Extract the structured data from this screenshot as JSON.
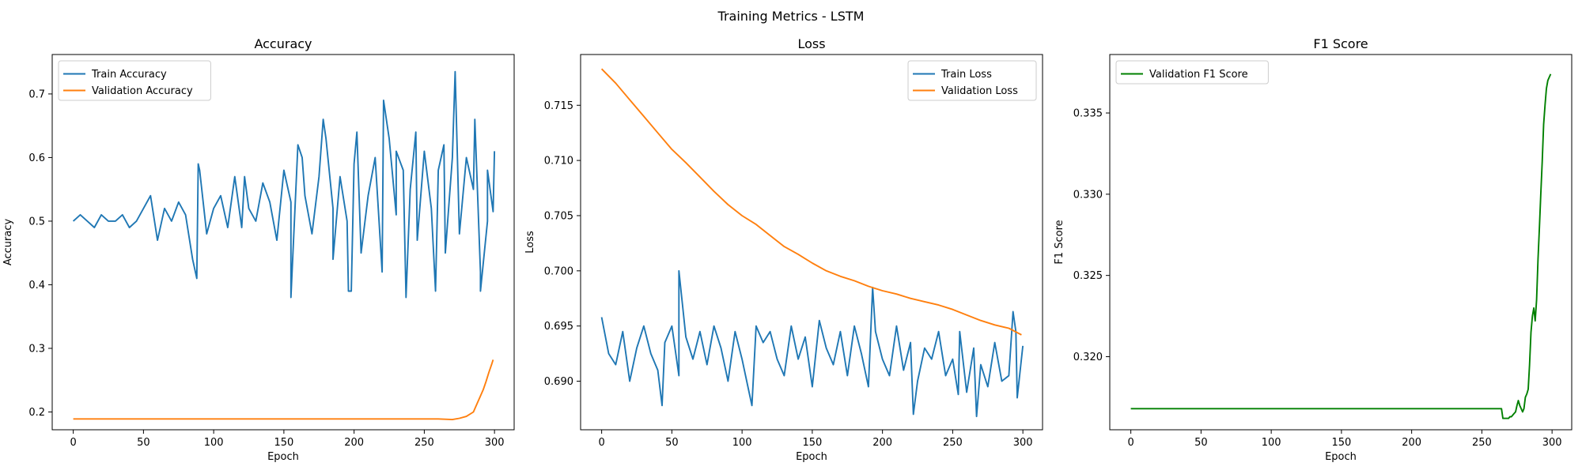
{
  "figure": {
    "suptitle": "Training Metrics - LSTM"
  },
  "colors": {
    "train": "#1f77b4",
    "validation": "#ff7f0e",
    "f1": "#008000",
    "axes": "#000000"
  },
  "chart_data": [
    {
      "type": "line",
      "title": "Accuracy",
      "xlabel": "Epoch",
      "ylabel": "Accuracy",
      "xlim": [
        -15,
        314
      ],
      "ylim": [
        0.172,
        0.762
      ],
      "xticks": [
        0,
        50,
        100,
        150,
        200,
        250,
        300
      ],
      "yticks": [
        0.2,
        0.3,
        0.4,
        0.5,
        0.6,
        0.7
      ],
      "yformat": 1,
      "legend_position": "upper-left",
      "series": [
        {
          "name": "Train Accuracy",
          "color": "#1f77b4",
          "x_start": 0,
          "x_step": 5,
          "values": [
            0.5,
            0.51,
            0.5,
            0.49,
            0.51,
            0.5,
            0.5,
            0.51,
            0.49,
            0.5,
            0.52,
            0.54,
            0.47,
            0.52,
            0.5,
            0.53,
            0.51,
            0.44,
            0.58,
            0.48,
            0.52,
            0.54,
            0.49,
            0.57,
            0.49,
            0.52,
            0.5,
            0.56,
            0.53,
            0.47,
            0.58,
            0.53,
            0.62,
            0.54,
            0.48,
            0.57,
            0.63,
            0.52,
            0.57,
            0.5,
            0.59,
            0.45,
            0.54,
            0.6,
            0.42,
            0.63,
            0.51,
            0.58,
            0.55,
            0.47,
            0.61,
            0.52,
            0.58,
            0.45,
            0.6,
            0.48,
            0.6,
            0.55,
            0.42,
            0.5,
            0.61
          ],
          "overlay": [
            [
              88,
              0.41
            ],
            [
              89,
              0.59
            ],
            [
              122,
              0.57
            ],
            [
              155,
              0.38
            ],
            [
              163,
              0.6
            ],
            [
              178,
              0.66
            ],
            [
              185,
              0.44
            ],
            [
              196,
              0.39
            ],
            [
              198,
              0.39
            ],
            [
              202,
              0.64
            ],
            [
              221,
              0.69
            ],
            [
              230,
              0.61
            ],
            [
              237,
              0.38
            ],
            [
              244,
              0.64
            ],
            [
              258,
              0.39
            ],
            [
              264,
              0.62
            ],
            [
              272,
              0.735
            ],
            [
              286,
              0.66
            ],
            [
              290,
              0.39
            ],
            [
              295,
              0.58
            ],
            [
              299,
              0.515
            ]
          ]
        },
        {
          "name": "Validation Accuracy",
          "color": "#ff7f0e",
          "x": [
            0,
            260,
            270,
            275,
            280,
            285,
            288,
            290,
            292,
            294,
            296,
            298,
            299
          ],
          "values": [
            0.189,
            0.189,
            0.188,
            0.19,
            0.193,
            0.2,
            0.215,
            0.225,
            0.235,
            0.248,
            0.262,
            0.275,
            0.282
          ]
        }
      ]
    },
    {
      "type": "line",
      "title": "Loss",
      "xlabel": "Epoch",
      "ylabel": "Loss",
      "xlim": [
        -15,
        314
      ],
      "ylim": [
        0.6856,
        0.7196
      ],
      "xticks": [
        0,
        50,
        100,
        150,
        200,
        250,
        300
      ],
      "yticks": [
        0.69,
        0.695,
        0.7,
        0.705,
        0.71,
        0.715
      ],
      "yformat": 3,
      "legend_position": "upper-right",
      "series": [
        {
          "name": "Train Loss",
          "color": "#1f77b4",
          "x_start": 0,
          "x_step": 5,
          "values": [
            0.6958,
            0.6925,
            0.6915,
            0.6945,
            0.69,
            0.693,
            0.695,
            0.6925,
            0.691,
            0.6935,
            0.695,
            0.6905,
            0.694,
            0.692,
            0.6945,
            0.6915,
            0.695,
            0.693,
            0.69,
            0.6945,
            0.692,
            0.689,
            0.695,
            0.6935,
            0.6945,
            0.692,
            0.6905,
            0.695,
            0.692,
            0.694,
            0.6895,
            0.6955,
            0.693,
            0.6915,
            0.6945,
            0.6905,
            0.695,
            0.6925,
            0.6895,
            0.6945,
            0.692,
            0.6905,
            0.695,
            0.691,
            0.6935,
            0.69,
            0.693,
            0.692,
            0.6945,
            0.6905,
            0.692,
            0.6945,
            0.689,
            0.693,
            0.6915,
            0.6895,
            0.6935,
            0.69,
            0.6905,
            0.6945,
            0.6932
          ],
          "overlay": [
            [
              43,
              0.6878
            ],
            [
              55,
              0.7
            ],
            [
              107,
              0.6878
            ],
            [
              193,
              0.6985
            ],
            [
              222,
              0.687
            ],
            [
              254,
              0.6888
            ],
            [
              267,
              0.6868
            ],
            [
              293,
              0.6963
            ],
            [
              296,
              0.6885
            ]
          ]
        },
        {
          "name": "Validation Loss",
          "color": "#ff7f0e",
          "x": [
            0,
            10,
            20,
            30,
            40,
            50,
            60,
            70,
            80,
            90,
            100,
            110,
            120,
            130,
            140,
            150,
            160,
            170,
            180,
            190,
            200,
            210,
            220,
            230,
            240,
            250,
            260,
            270,
            280,
            290,
            299
          ],
          "values": [
            0.7183,
            0.717,
            0.7155,
            0.714,
            0.7125,
            0.711,
            0.7098,
            0.7085,
            0.7072,
            0.706,
            0.705,
            0.7042,
            0.7032,
            0.7022,
            0.7015,
            0.7007,
            0.7,
            0.6995,
            0.6991,
            0.6986,
            0.6982,
            0.6979,
            0.6975,
            0.6972,
            0.6969,
            0.6965,
            0.696,
            0.6955,
            0.6951,
            0.6948,
            0.6942
          ]
        }
      ]
    },
    {
      "type": "line",
      "title": "F1 Score",
      "xlabel": "Epoch",
      "ylabel": "F1 Score",
      "xlim": [
        -15,
        314
      ],
      "ylim": [
        0.3155,
        0.3386
      ],
      "xticks": [
        0,
        50,
        100,
        150,
        200,
        250,
        300
      ],
      "yticks": [
        0.32,
        0.325,
        0.33,
        0.335
      ],
      "yformat": 3,
      "legend_position": "upper-left",
      "series": [
        {
          "name": "Validation F1 Score",
          "color": "#008000",
          "x": [
            0,
            264,
            265,
            266,
            267,
            268,
            269,
            270,
            271,
            272,
            273,
            274,
            275,
            276,
            277,
            278,
            279,
            280,
            281,
            282,
            283,
            284,
            285,
            286,
            287,
            288,
            289,
            290,
            291,
            292,
            293,
            294,
            295,
            296,
            297,
            298,
            299
          ],
          "values": [
            0.3168,
            0.3168,
            0.3162,
            0.3162,
            0.3162,
            0.3162,
            0.3162,
            0.3163,
            0.3163,
            0.3164,
            0.3165,
            0.3166,
            0.317,
            0.3173,
            0.317,
            0.3168,
            0.3166,
            0.3168,
            0.3175,
            0.3177,
            0.318,
            0.3195,
            0.3215,
            0.3225,
            0.323,
            0.3222,
            0.3235,
            0.326,
            0.328,
            0.33,
            0.332,
            0.3343,
            0.3355,
            0.3365,
            0.337,
            0.3372,
            0.3374
          ]
        }
      ]
    }
  ]
}
